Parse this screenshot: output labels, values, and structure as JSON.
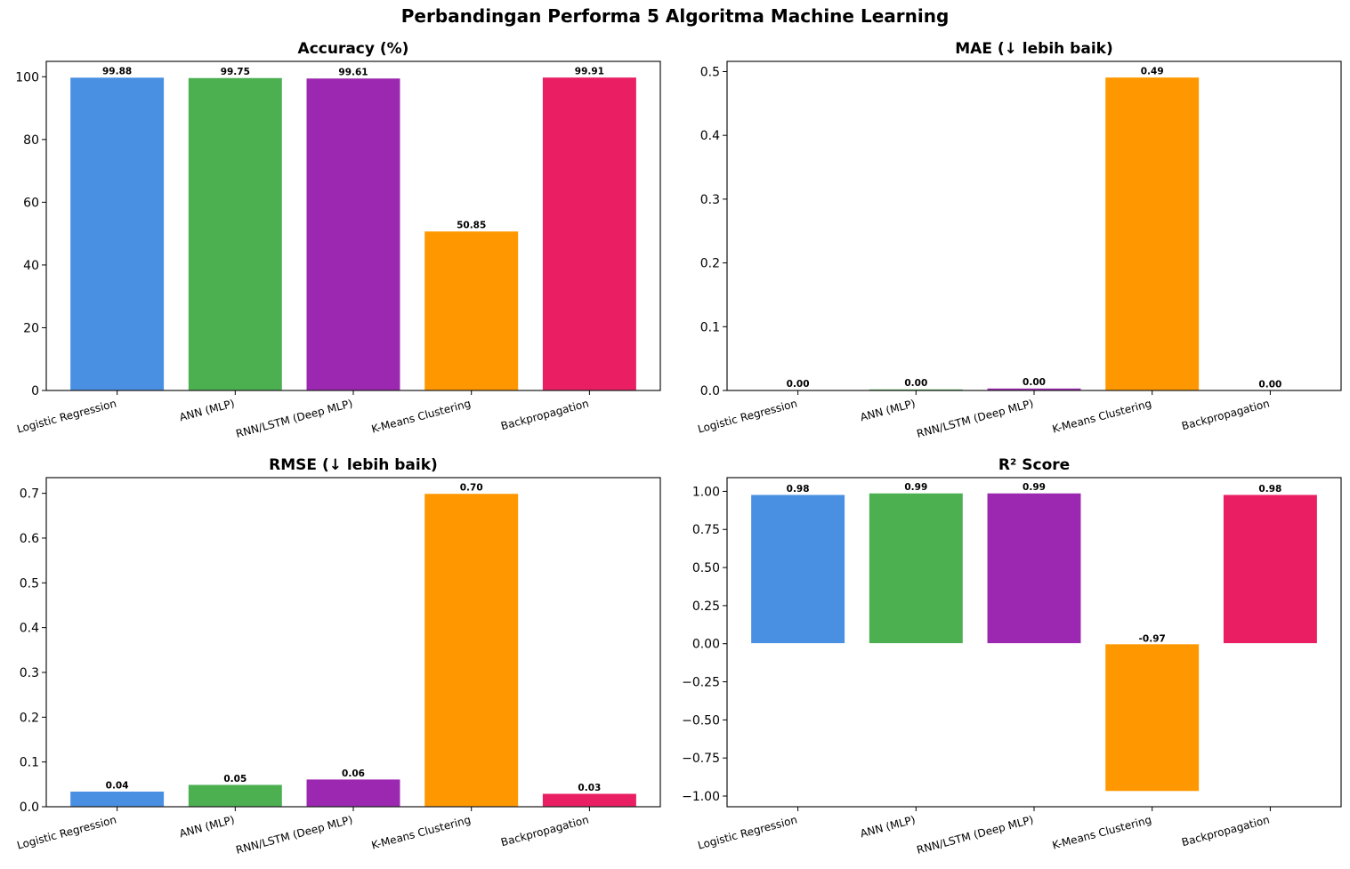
{
  "figure_title": "Perbandingan Performa 5 Algoritma Machine Learning",
  "colors": [
    "#4a90e2",
    "#4caf50",
    "#9c27b0",
    "#ff9800",
    "#e91e63"
  ],
  "chart_data": [
    {
      "type": "bar",
      "title": "Accuracy (%)",
      "categories": [
        "Logistic Regression",
        "ANN (MLP)",
        "RNN/LSTM (Deep MLP)",
        "K-Means Clustering",
        "Backpropagation"
      ],
      "values": [
        99.88,
        99.75,
        99.61,
        50.85,
        99.91
      ],
      "value_labels": [
        "99.88",
        "99.75",
        "99.61",
        "50.85",
        "99.91"
      ],
      "ylim": [
        0,
        104.9
      ],
      "yticks": [
        0,
        20,
        40,
        60,
        80,
        100
      ],
      "ytick_labels": [
        "0",
        "20",
        "40",
        "60",
        "80",
        "100"
      ]
    },
    {
      "type": "bar",
      "title": "MAE (↓ lebih baik)",
      "categories": [
        "Logistic Regression",
        "ANN (MLP)",
        "RNN/LSTM (Deep MLP)",
        "K-Means Clustering",
        "Backpropagation"
      ],
      "values": [
        0.0012,
        0.0025,
        0.0039,
        0.4915,
        0.0009
      ],
      "value_labels": [
        "0.00",
        "0.00",
        "0.00",
        "0.49",
        "0.00"
      ],
      "ylim": [
        0,
        0.516
      ],
      "yticks": [
        0,
        0.1,
        0.2,
        0.3,
        0.4,
        0.5
      ],
      "ytick_labels": [
        "0.0",
        "0.1",
        "0.2",
        "0.3",
        "0.4",
        "0.5"
      ]
    },
    {
      "type": "bar",
      "title": "RMSE (↓ lebih baik)",
      "categories": [
        "Logistic Regression",
        "ANN (MLP)",
        "RNN/LSTM (Deep MLP)",
        "K-Means Clustering",
        "Backpropagation"
      ],
      "values": [
        0.035,
        0.05,
        0.062,
        0.7,
        0.03
      ],
      "value_labels": [
        "0.04",
        "0.05",
        "0.06",
        "0.70",
        "0.03"
      ],
      "ylim": [
        0,
        0.735
      ],
      "yticks": [
        0,
        0.1,
        0.2,
        0.3,
        0.4,
        0.5,
        0.6,
        0.7
      ],
      "ytick_labels": [
        "0.0",
        "0.1",
        "0.2",
        "0.3",
        "0.4",
        "0.5",
        "0.6",
        "0.7"
      ]
    },
    {
      "type": "bar",
      "title": "R² Score",
      "categories": [
        "Logistic Regression",
        "ANN (MLP)",
        "RNN/LSTM (Deep MLP)",
        "K-Means Clustering",
        "Backpropagation"
      ],
      "values": [
        0.98,
        0.99,
        0.99,
        -0.97,
        0.98
      ],
      "value_labels": [
        "0.98",
        "0.99",
        "0.99",
        "-0.97",
        "0.98"
      ],
      "ylim": [
        -1.07,
        1.09
      ],
      "yticks": [
        -1.0,
        -0.75,
        -0.5,
        -0.25,
        0,
        0.25,
        0.5,
        0.75,
        1.0
      ],
      "ytick_labels": [
        "−1.00",
        "−0.75",
        "−0.50",
        "−0.25",
        "0.00",
        "0.25",
        "0.50",
        "0.75",
        "1.00"
      ]
    }
  ]
}
